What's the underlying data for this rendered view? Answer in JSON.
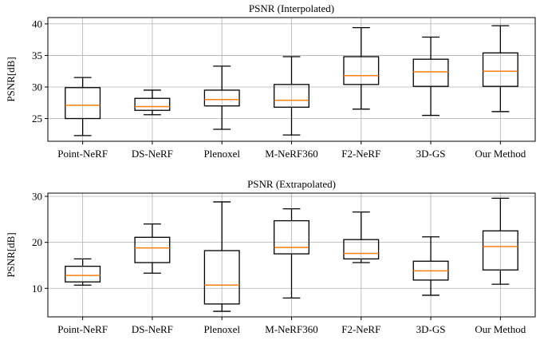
{
  "style": {
    "box_color": "#000000",
    "median_color": "#ff7f0e",
    "grid_color": "#b0b0b0",
    "background": "#ffffff"
  },
  "chart_data": [
    {
      "type": "box",
      "title": "PSNR (Interpolated)",
      "xlabel": "",
      "ylabel": "PSNR[dB]",
      "ylim": [
        21.4,
        41
      ],
      "yticks": [
        25,
        30,
        35,
        40
      ],
      "grid": true,
      "categories": [
        "Point-NeRF",
        "DS-NeRF",
        "Plenoxel",
        "M-NeRF360",
        "F2-NeRF",
        "3D-GS",
        "Our Method"
      ],
      "boxes": [
        {
          "whisker_low": 22.3,
          "q1": 25.0,
          "median": 27.1,
          "q3": 29.9,
          "whisker_high": 31.5
        },
        {
          "whisker_low": 25.6,
          "q1": 26.3,
          "median": 26.9,
          "q3": 28.2,
          "whisker_high": 29.5
        },
        {
          "whisker_low": 23.3,
          "q1": 27.0,
          "median": 28.0,
          "q3": 29.5,
          "whisker_high": 33.3
        },
        {
          "whisker_low": 22.4,
          "q1": 26.8,
          "median": 27.9,
          "q3": 30.4,
          "whisker_high": 34.8
        },
        {
          "whisker_low": 26.5,
          "q1": 30.4,
          "median": 31.8,
          "q3": 34.8,
          "whisker_high": 39.4
        },
        {
          "whisker_low": 25.5,
          "q1": 30.1,
          "median": 32.4,
          "q3": 34.4,
          "whisker_high": 37.9
        },
        {
          "whisker_low": 26.1,
          "q1": 30.1,
          "median": 32.5,
          "q3": 35.4,
          "whisker_high": 39.7
        }
      ]
    },
    {
      "type": "box",
      "title": "PSNR (Extrapolated)",
      "xlabel": "",
      "ylabel": "PSNR[dB]",
      "ylim": [
        3.8,
        30.7
      ],
      "yticks": [
        10,
        20,
        30
      ],
      "grid": true,
      "categories": [
        "Point-NeRF",
        "DS-NeRF",
        "Plenoxel",
        "M-NeRF360",
        "F2-NeRF",
        "3D-GS",
        "Our Method"
      ],
      "boxes": [
        {
          "whisker_low": 10.7,
          "q1": 11.4,
          "median": 12.8,
          "q3": 14.8,
          "whisker_high": 16.4
        },
        {
          "whisker_low": 13.3,
          "q1": 15.6,
          "median": 18.8,
          "q3": 21.1,
          "whisker_high": 24.0
        },
        {
          "whisker_low": 5.0,
          "q1": 6.6,
          "median": 10.7,
          "q3": 18.2,
          "whisker_high": 28.8
        },
        {
          "whisker_low": 7.9,
          "q1": 17.5,
          "median": 18.9,
          "q3": 24.7,
          "whisker_high": 27.3
        },
        {
          "whisker_low": 15.6,
          "q1": 16.4,
          "median": 17.6,
          "q3": 20.6,
          "whisker_high": 26.6
        },
        {
          "whisker_low": 8.5,
          "q1": 11.8,
          "median": 13.8,
          "q3": 15.9,
          "whisker_high": 21.2
        },
        {
          "whisker_low": 10.9,
          "q1": 14.0,
          "median": 19.1,
          "q3": 22.5,
          "whisker_high": 29.6
        }
      ]
    }
  ]
}
